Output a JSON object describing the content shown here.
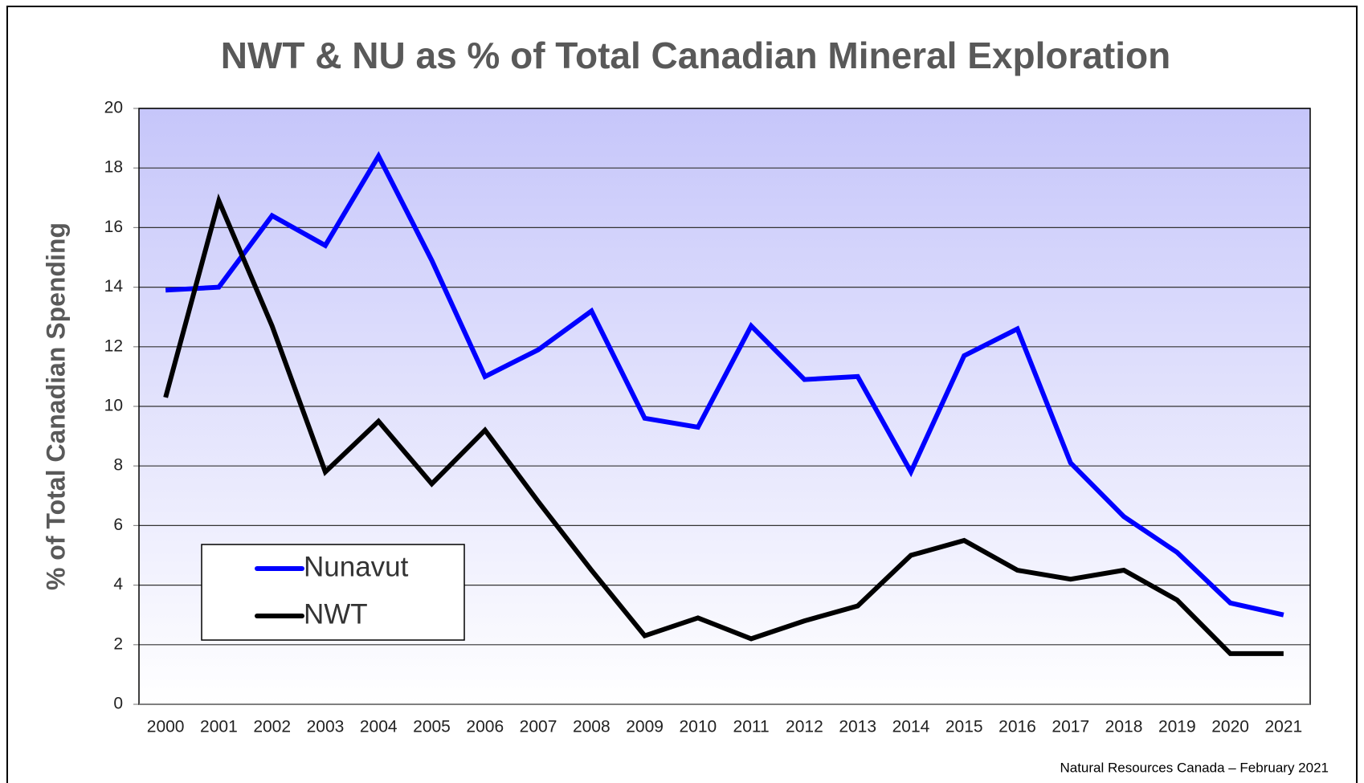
{
  "chart_data": {
    "type": "line",
    "title": "NWT & NU as % of Total Canadian Mineral Exploration",
    "y_label": "% of Total Canadian Spending",
    "source": "Natural Resources Canada – February 2021",
    "categories": [
      "2000",
      "2001",
      "2002",
      "2003",
      "2004",
      "2005",
      "2006",
      "2007",
      "2008",
      "2009",
      "2010",
      "2011",
      "2012",
      "2013",
      "2014",
      "2015",
      "2016",
      "2017",
      "2018",
      "2019",
      "2020",
      "2021"
    ],
    "series": [
      {
        "name": "Nunavut",
        "color": "#0000ff",
        "values": [
          13.9,
          14.0,
          16.4,
          15.4,
          18.4,
          14.9,
          11.0,
          11.9,
          13.2,
          9.6,
          9.3,
          12.7,
          10.9,
          11.0,
          7.8,
          11.7,
          12.6,
          8.1,
          6.3,
          5.1,
          3.4,
          3.0
        ]
      },
      {
        "name": "NWT",
        "color": "#000000",
        "values": [
          10.3,
          16.9,
          12.7,
          7.8,
          9.5,
          7.4,
          9.2,
          6.8,
          4.5,
          2.3,
          2.9,
          2.2,
          2.8,
          3.3,
          5.0,
          5.5,
          4.5,
          4.2,
          4.5,
          3.5,
          1.7,
          1.7
        ]
      }
    ],
    "ylim": [
      0,
      20
    ],
    "yticks": [
      0,
      2,
      4,
      6,
      8,
      10,
      12,
      14,
      16,
      18,
      20
    ],
    "grid": true,
    "legend": "lower left"
  }
}
